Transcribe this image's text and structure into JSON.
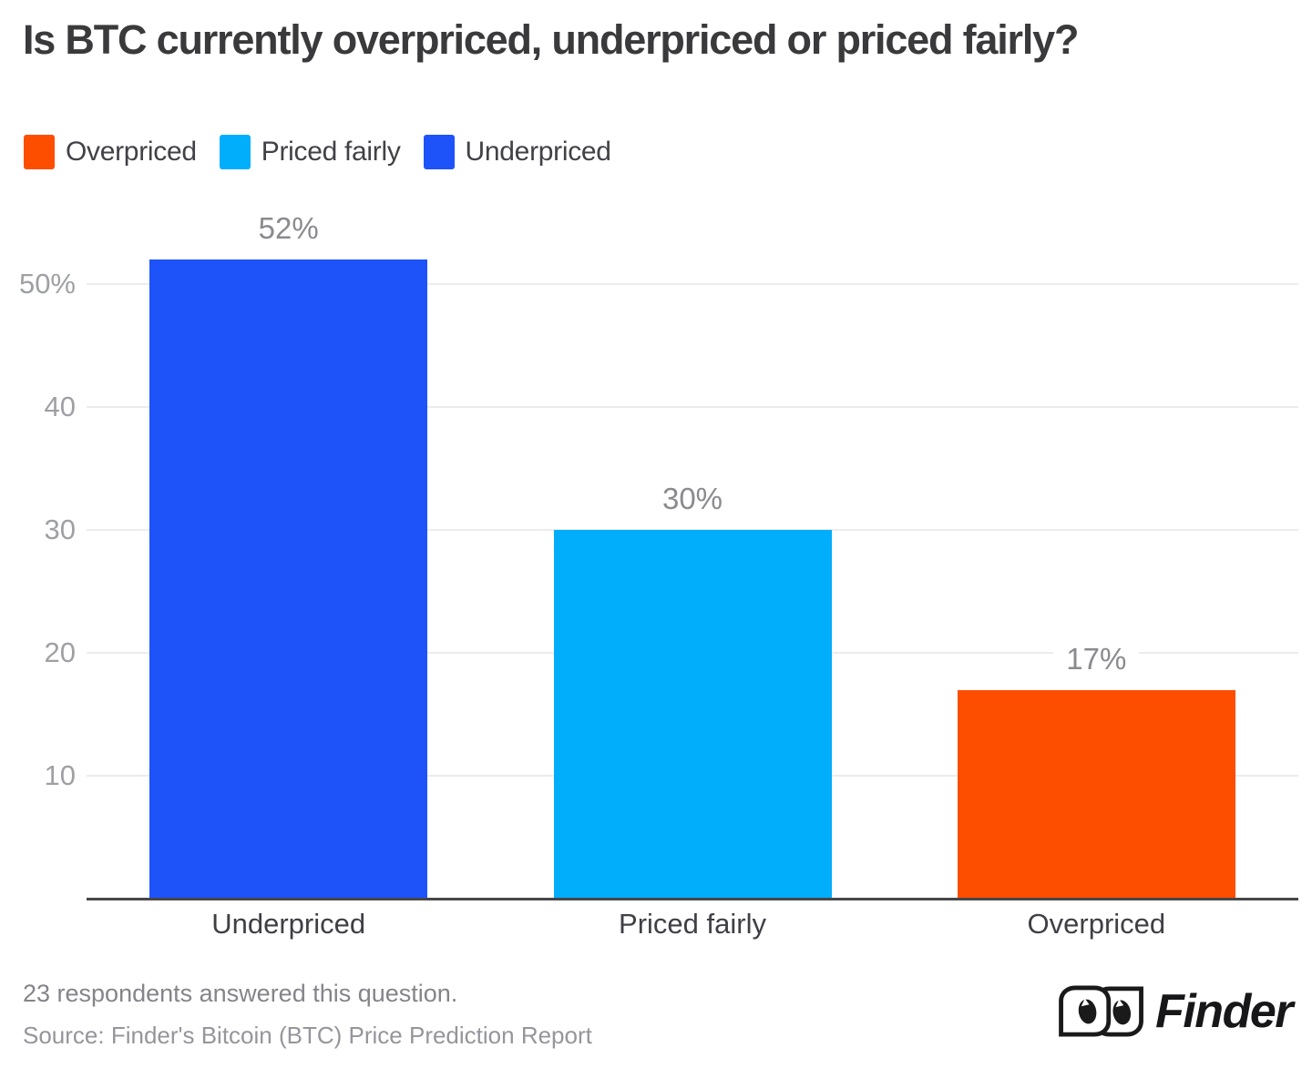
{
  "title": "Is BTC currently overpriced, underpriced or priced fairly?",
  "legend": {
    "items": [
      {
        "label": "Overpriced",
        "color": "#fd4e00"
      },
      {
        "label": "Priced fairly",
        "color": "#00aefb"
      },
      {
        "label": "Underpriced",
        "color": "#1e53fa"
      }
    ]
  },
  "chart_data": {
    "type": "bar",
    "categories": [
      "Underpriced",
      "Priced fairly",
      "Overpriced"
    ],
    "values": [
      52,
      30,
      17
    ],
    "value_labels": [
      "52%",
      "30%",
      "17%"
    ],
    "bar_colors": [
      "#1e53fa",
      "#00aefb",
      "#fd4e00"
    ],
    "title": "Is BTC currently overpriced, underpriced or priced fairly?",
    "xlabel": "",
    "ylabel": "",
    "ylim": [
      0,
      55
    ],
    "yticks": [
      {
        "value": 10,
        "label": "10"
      },
      {
        "value": 20,
        "label": "20"
      },
      {
        "value": 30,
        "label": "30"
      },
      {
        "value": 40,
        "label": "40"
      },
      {
        "value": 50,
        "label": "50%"
      }
    ],
    "grid": true,
    "legend_position": "top-left"
  },
  "footer": {
    "note": "23 respondents answered this question.",
    "source": "Source: Finder's Bitcoin (BTC) Price Prediction Report"
  },
  "logo": {
    "text": "Finder"
  }
}
